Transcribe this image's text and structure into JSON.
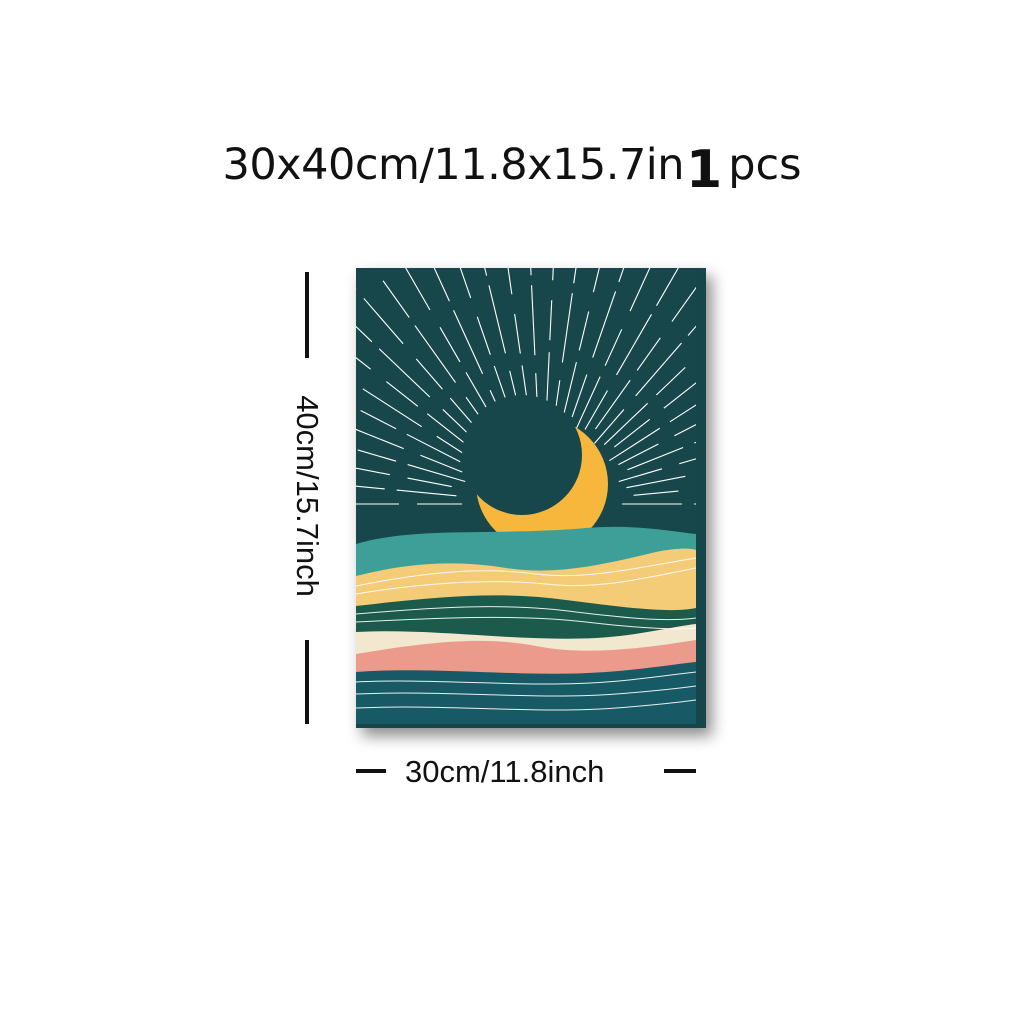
{
  "title": {
    "size_text": "30x40cm/11.8x15.7in",
    "quantity_number": "1",
    "quantity_unit": "pcs"
  },
  "dimensions": {
    "height_label": "40cm/15.7inch",
    "width_label": "30cm/11.8inch"
  },
  "artwork": {
    "subject": "crescent moon rising over layered wavy hills with radiating lines",
    "colors": {
      "sky": "#17474a",
      "moon": "#f6b73c",
      "teal_hill": "#3e9f99",
      "sand_hill": "#f4cb77",
      "dark_green_hill": "#1c5a4c",
      "cream_band": "#f1e8cf",
      "pink_hill": "#ec9a8b",
      "sea": "#175a66",
      "lines": "#ffffff"
    }
  }
}
